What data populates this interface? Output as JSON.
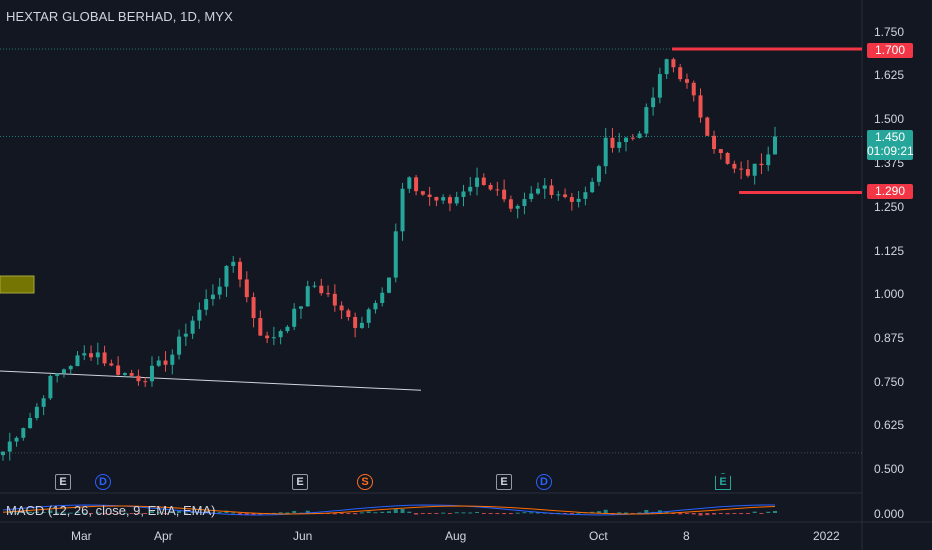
{
  "header": {
    "title": "HEXTAR GLOBAL BERHAD, 1D, MYX"
  },
  "price_axis": {
    "ticks": [
      "1.750",
      "1.625",
      "1.500",
      "1.375",
      "1.250",
      "1.125",
      "1.000",
      "0.875",
      "0.750",
      "0.625",
      "0.500"
    ],
    "tags": {
      "resistance": "1.700",
      "last_price": "1.450",
      "countdown": "01:09:21",
      "support": "1.290"
    }
  },
  "macd": {
    "label": "MACD (12, 26, close, 9, EMA, EMA)",
    "axis_tick": "0.000"
  },
  "time_axis": {
    "ticks": [
      "Mar",
      "Apr",
      "Jun",
      "Aug",
      "Oct",
      "8",
      "2022"
    ]
  },
  "events": [
    {
      "type": "earnings",
      "letter": "E"
    },
    {
      "type": "dividend",
      "letter": "D"
    },
    {
      "type": "earnings",
      "letter": "E"
    },
    {
      "type": "split",
      "letter": "S"
    },
    {
      "type": "earnings",
      "letter": "E"
    },
    {
      "type": "dividend",
      "letter": "D"
    },
    {
      "type": "earnings-upcoming",
      "letter": "E"
    }
  ],
  "colors": {
    "background": "#131722",
    "up": "#26a69a",
    "down": "#ef5350",
    "level": "#f23645",
    "last_price": "#26a69a",
    "macd_line": "#2962ff",
    "signal_line": "#ff6d00",
    "trend_line": "#d1d4dc",
    "highlight_box": "#808000"
  },
  "chart_data": {
    "type": "candlestick",
    "timeframe": "1D",
    "x_ticks": [
      "Mar",
      "Apr",
      "Jun",
      "Aug",
      "Oct",
      "8",
      "2022"
    ],
    "y_range": [
      0.5,
      1.75
    ],
    "levels": [
      1.7,
      1.29
    ],
    "last_price": 1.45,
    "trend_line": [
      0.78,
      0.725
    ],
    "path_price": [
      0.55,
      0.61,
      0.66,
      0.75,
      0.79,
      0.82,
      0.84,
      0.79,
      0.77,
      0.76,
      0.79,
      0.83,
      0.91,
      0.97,
      1.03,
      1.1,
      0.96,
      0.86,
      0.9,
      0.95,
      1.03,
      1.0,
      0.94,
      0.91,
      0.98,
      1.05,
      1.33,
      1.29,
      1.27,
      1.26,
      1.31,
      1.33,
      1.29,
      1.22,
      1.27,
      1.31,
      1.29,
      1.27,
      1.29,
      1.43,
      1.44,
      1.45,
      1.55,
      1.67,
      1.62,
      1.53,
      1.43,
      1.36,
      1.34,
      1.37,
      1.45
    ],
    "macd_series": [
      "MACD",
      "Signal",
      "Histogram"
    ]
  }
}
